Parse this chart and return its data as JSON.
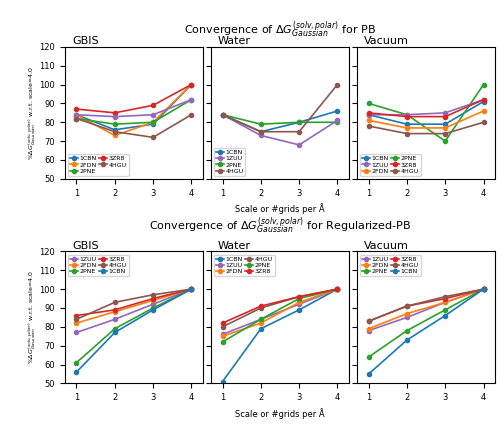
{
  "title_top": "Convergence of $\\Delta G_{Gaussian}^{(solv,polar)}$ for PB",
  "title_bottom": "Convergence of $\\Delta G_{Gaussian}^{(solv,polar)}$ for Regularized-PB",
  "ylabel": "%$\\Delta G_{Gaussian}^{(solv,polar)}$ w.r.t. scale=4.0",
  "xlabel": "Scale or #grids per Å",
  "x": [
    1,
    2,
    3,
    4
  ],
  "top_panels": {
    "GBIS": {
      "1CBN": [
        84,
        76,
        79,
        100
      ],
      "2FDN": [
        84,
        73,
        80,
        100
      ],
      "2PNE": [
        82,
        79,
        80,
        92
      ],
      "3ZR8": [
        87,
        85,
        89,
        100
      ],
      "1ZUU": [
        84,
        83,
        84,
        92
      ],
      "4HGU": [
        82,
        75,
        72,
        84
      ]
    },
    "Water": {
      "1CBN": [
        84,
        75,
        80,
        86
      ],
      "2PNE": [
        84,
        79,
        80,
        80
      ],
      "1ZUU": [
        84,
        73,
        68,
        81
      ],
      "4HGU": [
        84,
        75,
        75,
        100
      ]
    },
    "Vacuum": {
      "1CBN": [
        84,
        79,
        79,
        91
      ],
      "2PNE": [
        90,
        84,
        70,
        100
      ],
      "1ZUU": [
        84,
        84,
        85,
        92
      ],
      "2FDN": [
        81,
        77,
        77,
        86
      ],
      "3ZR8": [
        85,
        83,
        83,
        92
      ],
      "4HGU": [
        78,
        74,
        74,
        80
      ]
    }
  },
  "bottom_panels": {
    "GBIS": {
      "1ZUU": [
        77,
        84,
        92,
        100
      ],
      "2FDN": [
        82,
        88,
        94,
        100
      ],
      "2PNE": [
        61,
        79,
        90,
        100
      ],
      "3ZR8": [
        86,
        89,
        95,
        100
      ],
      "4HGU": [
        84,
        93,
        97,
        100
      ],
      "1CBN": [
        56,
        77,
        89,
        100
      ]
    },
    "Water": {
      "1CBN": [
        51,
        79,
        89,
        100
      ],
      "1ZUU": [
        76,
        84,
        92,
        100
      ],
      "2FDN": [
        75,
        82,
        93,
        100
      ],
      "4HGU": [
        80,
        90,
        96,
        100
      ],
      "2PNE": [
        72,
        84,
        95,
        100
      ],
      "3ZR8": [
        82,
        91,
        96,
        100
      ]
    },
    "Vacuum": {
      "1ZUU": [
        78,
        85,
        93,
        100
      ],
      "2FDN": [
        79,
        87,
        93,
        100
      ],
      "2PNE": [
        64,
        78,
        89,
        100
      ],
      "3ZR8": [
        83,
        91,
        95,
        100
      ],
      "4HGU": [
        83,
        91,
        96,
        100
      ],
      "1CBN": [
        55,
        73,
        86,
        100
      ]
    }
  },
  "colors": {
    "1CBN": "#1f77b4",
    "2FDN": "#ff7f0e",
    "2PNE": "#2ca02c",
    "3ZR8": "#d62728",
    "1ZUU": "#9467bd",
    "4HGU": "#8c564b"
  },
  "top_GBIS_legend": [
    "1CBN",
    "2FDN",
    "2PNE",
    "3ZR8",
    "4HGU"
  ],
  "top_Water_legend": [
    "1CBN",
    "1ZUU",
    "2PNE",
    "4HGU"
  ],
  "top_Vacuum_legend": [
    "1CBN",
    "1ZUU",
    "2FDN",
    "2PNE",
    "3ZR8",
    "4HGU"
  ],
  "bot_GBIS_legend": [
    "1ZUU",
    "2FDN",
    "2PNE",
    "3ZR8",
    "4HGU",
    "1CBN"
  ],
  "bot_Water_legend": [
    "1CBN",
    "1ZUU",
    "2FDN",
    "4HGU",
    "2PNE",
    "3ZR8"
  ],
  "bot_Vacuum_legend": [
    "1ZUU",
    "2FDN",
    "2PNE",
    "3ZR8",
    "4HGU",
    "1CBN"
  ]
}
